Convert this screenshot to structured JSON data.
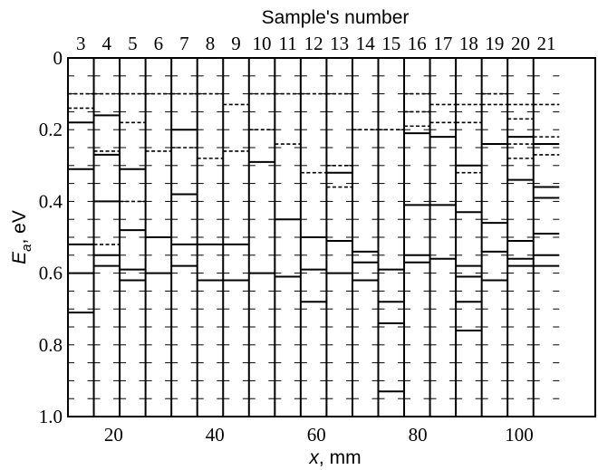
{
  "chart_data": {
    "type": "bar",
    "title": "",
    "top_axis_label": "Sample's number",
    "xlabel": "x, mm",
    "ylabel": "E_a, eV",
    "ylabel_main": "E",
    "ylabel_sub": "a",
    "ylabel_rest": ", eV",
    "xlabel_main": "x",
    "xlabel_rest": ", mm",
    "ylim": [
      0,
      1.0
    ],
    "y_inverted": true,
    "xlim": [
      11,
      115
    ],
    "y_ticks": [
      "0",
      "0.2",
      "0.4",
      "0.6",
      "0.8",
      "1.0"
    ],
    "y_tick_values": [
      0,
      0.2,
      0.4,
      0.6,
      0.8,
      1.0
    ],
    "x_ticks": [
      "20",
      "40",
      "60",
      "80",
      "100"
    ],
    "x_tick_values": [
      20,
      40,
      60,
      80,
      100
    ],
    "grid": false,
    "sample_boundaries_mm": [
      11,
      16.1,
      21.2,
      26.3,
      31.4,
      36.5,
      41.6,
      46.7,
      51.8,
      56.9,
      62.0,
      67.1,
      72.2,
      77.3,
      82.4,
      87.5,
      92.6,
      97.7,
      102.8,
      107.9,
      111.6,
      115
    ],
    "samples": [
      {
        "number": "3",
        "solid": [
          0.18,
          0.31,
          0.52,
          0.6,
          0.71
        ],
        "dashed": [
          0.1,
          0.14
        ]
      },
      {
        "number": "4",
        "solid": [
          0.16,
          0.27,
          0.4,
          0.55,
          0.58
        ],
        "dashed": [
          0.1,
          0.26,
          0.52
        ]
      },
      {
        "number": "5",
        "solid": [
          0.31,
          0.48,
          0.59,
          0.62
        ],
        "dashed": [
          0.1,
          0.18,
          0.4
        ]
      },
      {
        "number": "6",
        "solid": [
          0.5,
          0.6
        ],
        "dashed": [
          0.1,
          0.26
        ]
      },
      {
        "number": "7",
        "solid": [
          0.2,
          0.38,
          0.52,
          0.58
        ],
        "dashed": [
          0.1,
          0.25
        ]
      },
      {
        "number": "8",
        "solid": [
          0.52,
          0.62
        ],
        "dashed": [
          0.1,
          0.28
        ]
      },
      {
        "number": "9",
        "solid": [
          0.52,
          0.62
        ],
        "dashed": [
          0.13,
          0.26
        ]
      },
      {
        "number": "10",
        "solid": [
          0.29,
          0.6
        ],
        "dashed": [
          0.1,
          0.2
        ]
      },
      {
        "number": "11",
        "solid": [
          0.45,
          0.61
        ],
        "dashed": [
          0.1,
          0.24
        ]
      },
      {
        "number": "12",
        "solid": [
          0.5,
          0.59,
          0.68
        ],
        "dashed": [
          0.1,
          0.32
        ]
      },
      {
        "number": "13",
        "solid": [
          0.32,
          0.51,
          0.6
        ],
        "dashed": [
          0.1,
          0.3,
          0.36
        ]
      },
      {
        "number": "14",
        "solid": [
          0.54,
          0.57,
          0.62
        ],
        "dashed": [
          0.2
        ]
      },
      {
        "number": "15",
        "solid": [
          0.59,
          0.68,
          0.74,
          0.93
        ],
        "dashed": [
          0.2
        ]
      },
      {
        "number": "16",
        "solid": [
          0.21,
          0.41,
          0.55,
          0.57
        ],
        "dashed": [
          0.1,
          0.15,
          0.19
        ]
      },
      {
        "number": "17",
        "solid": [
          0.22,
          0.41,
          0.56
        ],
        "dashed": [
          0.13,
          0.18
        ]
      },
      {
        "number": "18",
        "solid": [
          0.3,
          0.43,
          0.58,
          0.61,
          0.68,
          0.76
        ],
        "dashed": [
          0.13,
          0.18,
          0.32
        ]
      },
      {
        "number": "19",
        "solid": [
          0.24,
          0.46,
          0.54,
          0.62
        ],
        "dashed": [
          0.1,
          0.13
        ]
      },
      {
        "number": "20",
        "solid": [
          0.22,
          0.34,
          0.51,
          0.56,
          0.58
        ],
        "dashed": [
          0.13,
          0.17,
          0.24,
          0.28
        ]
      },
      {
        "number": "21",
        "solid": [
          0.24,
          0.36,
          0.39,
          0.49,
          0.55,
          0.58
        ],
        "dashed": [
          0.13,
          0.22,
          0.27
        ]
      }
    ]
  }
}
